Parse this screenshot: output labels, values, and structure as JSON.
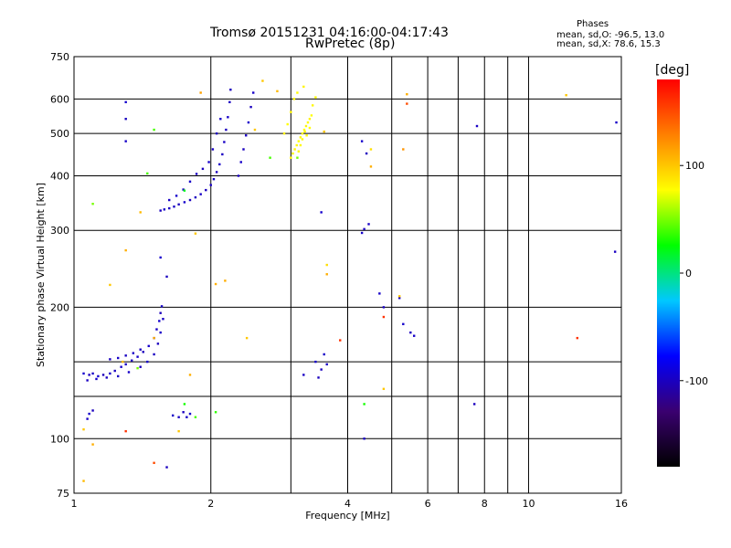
{
  "header": {
    "title_line1": "Tromsø 20151231 04:16:00-04:17:43",
    "title_line2": "RwPretec (8p)",
    "phases_label": "Phases",
    "stat_o": "mean, sd,O: -96.5, 13.0",
    "stat_x": "mean, sd,X:  78.6, 15.3"
  },
  "chart_data": {
    "type": "scatter",
    "title": "Tromsø 20151231 04:16:00-04:17:43",
    "subtitle": "RwPretec (8p)",
    "xlabel": "Frequency [MHz]",
    "ylabel": "Stationary phase Virtual Height [km]",
    "x_scale": "log",
    "y_scale": "log",
    "xlim": [
      1,
      16
    ],
    "ylim": [
      75,
      750
    ],
    "x_ticks": [
      1,
      2,
      4,
      6,
      8,
      10,
      16
    ],
    "y_ticks": [
      75,
      100,
      200,
      300,
      400,
      500,
      600,
      750
    ],
    "grid": true,
    "colorbar": {
      "label": "[deg]",
      "min": -180,
      "max": 180,
      "ticks": [
        -100,
        0,
        100
      ],
      "colors": [
        "#000000",
        "#3a0070",
        "#0000ff",
        "#00c8ff",
        "#00ff00",
        "#ffff00",
        "#ff8000",
        "#ff0000"
      ]
    },
    "series": [
      {
        "points": [
          [
            1.05,
            141,
            -95
          ],
          [
            1.08,
            140,
            -100
          ],
          [
            1.1,
            141,
            -98
          ],
          [
            1.13,
            139,
            -94
          ],
          [
            1.16,
            140,
            -102
          ],
          [
            1.2,
            141,
            -97
          ],
          [
            1.23,
            143,
            -100
          ],
          [
            1.27,
            146,
            -96
          ],
          [
            1.3,
            148,
            -99
          ],
          [
            1.34,
            151,
            -100
          ],
          [
            1.38,
            154,
            -97
          ],
          [
            1.42,
            158,
            -101
          ],
          [
            1.46,
            163,
            -96
          ],
          [
            1.5,
            170,
            -100
          ],
          [
            1.52,
            178,
            -98
          ],
          [
            1.54,
            186,
            -95
          ],
          [
            1.55,
            194,
            -102
          ],
          [
            1.56,
            201,
            -97
          ],
          [
            1.07,
            136,
            -99
          ],
          [
            1.12,
            137,
            -96
          ],
          [
            1.18,
            138,
            -100
          ],
          [
            1.25,
            139,
            -98
          ],
          [
            1.32,
            142,
            -97
          ],
          [
            1.4,
            146,
            -100
          ],
          [
            1.45,
            150,
            -96
          ],
          [
            1.5,
            156,
            -99
          ],
          [
            1.53,
            165,
            -100
          ],
          [
            1.55,
            175,
            -97
          ],
          [
            1.57,
            188,
            -98
          ],
          [
            1.2,
            152,
            -100
          ],
          [
            1.25,
            153,
            -97
          ],
          [
            1.3,
            155,
            -99
          ],
          [
            1.35,
            157,
            -98
          ],
          [
            1.4,
            160,
            -100
          ],
          [
            1.07,
            111,
            -98
          ],
          [
            1.08,
            114,
            -96
          ],
          [
            1.1,
            116,
            -100
          ],
          [
            1.65,
            113,
            -97
          ],
          [
            1.7,
            112,
            -99
          ],
          [
            1.74,
            115,
            -100
          ],
          [
            1.77,
            112,
            -98
          ],
          [
            1.8,
            114,
            -96
          ],
          [
            1.55,
            333,
            -100
          ],
          [
            1.58,
            335,
            -97
          ],
          [
            1.62,
            337,
            -99
          ],
          [
            1.66,
            340,
            -98
          ],
          [
            1.7,
            344,
            -101
          ],
          [
            1.75,
            348,
            -96
          ],
          [
            1.8,
            352,
            -100
          ],
          [
            1.85,
            357,
            -99
          ],
          [
            1.9,
            363,
            -97
          ],
          [
            1.95,
            371,
            -100
          ],
          [
            2.0,
            381,
            -98
          ],
          [
            2.03,
            393,
            -96
          ],
          [
            2.06,
            408,
            -100
          ],
          [
            2.09,
            425,
            -97
          ],
          [
            2.12,
            448,
            -99
          ],
          [
            2.14,
            478,
            -98
          ],
          [
            2.16,
            510,
            -100
          ],
          [
            2.18,
            545,
            -97
          ],
          [
            2.2,
            590,
            -99
          ],
          [
            2.21,
            630,
            -100
          ],
          [
            1.62,
            352,
            -98
          ],
          [
            1.68,
            360,
            -96
          ],
          [
            1.74,
            372,
            -100
          ],
          [
            1.8,
            388,
            -97
          ],
          [
            1.86,
            404,
            -99
          ],
          [
            1.92,
            415,
            -100
          ],
          [
            1.98,
            430,
            -97
          ],
          [
            2.02,
            460,
            -98
          ],
          [
            2.06,
            500,
            -100
          ],
          [
            2.1,
            540,
            -96
          ],
          [
            2.3,
            400,
            -99
          ],
          [
            2.33,
            430,
            -97
          ],
          [
            2.36,
            460,
            -100
          ],
          [
            2.39,
            495,
            -98
          ],
          [
            2.42,
            530,
            -96
          ],
          [
            2.45,
            575,
            -100
          ],
          [
            2.48,
            620,
            -97
          ],
          [
            1.3,
            590,
            -95
          ],
          [
            1.3,
            540,
            -100
          ],
          [
            1.3,
            480,
            -97
          ],
          [
            1.55,
            260,
            -95
          ],
          [
            1.6,
            235,
            -100
          ],
          [
            3.4,
            150,
            -95
          ],
          [
            3.5,
            144,
            -100
          ],
          [
            3.55,
            156,
            -97
          ],
          [
            3.6,
            148,
            -99
          ],
          [
            3.45,
            138,
            -100
          ],
          [
            3.2,
            140,
            -98
          ],
          [
            3.5,
            330,
            -95
          ],
          [
            4.3,
            296,
            -97
          ],
          [
            4.35,
            302,
            -100
          ],
          [
            4.45,
            310,
            -98
          ],
          [
            4.3,
            480,
            -95
          ],
          [
            4.4,
            450,
            -100
          ],
          [
            4.7,
            215,
            -97
          ],
          [
            4.8,
            200,
            -99
          ],
          [
            5.2,
            210,
            -98
          ],
          [
            5.5,
            175,
            -100
          ],
          [
            5.6,
            172,
            -97
          ],
          [
            5.3,
            183,
            -96
          ],
          [
            7.7,
            520,
            -98
          ],
          [
            7.6,
            120,
            -100
          ],
          [
            15.6,
            530,
            -97
          ],
          [
            15.5,
            268,
            -99
          ],
          [
            1.6,
            86,
            -100
          ],
          [
            4.35,
            100,
            -98
          ]
        ]
      },
      {
        "points": [
          [
            3.0,
            440,
            80
          ],
          [
            3.03,
            450,
            78
          ],
          [
            3.06,
            460,
            82
          ],
          [
            3.09,
            470,
            79
          ],
          [
            3.12,
            480,
            77
          ],
          [
            3.15,
            490,
            80
          ],
          [
            3.18,
            500,
            81
          ],
          [
            3.21,
            510,
            78
          ],
          [
            3.24,
            520,
            80
          ],
          [
            3.27,
            530,
            79
          ],
          [
            3.3,
            540,
            82
          ],
          [
            3.33,
            550,
            77
          ],
          [
            3.05,
            600,
            80
          ],
          [
            3.1,
            620,
            78
          ],
          [
            3.2,
            640,
            81
          ],
          [
            3.15,
            470,
            79
          ],
          [
            3.25,
            495,
            80
          ],
          [
            3.3,
            515,
            78
          ],
          [
            3.35,
            580,
            80
          ],
          [
            3.4,
            605,
            79
          ],
          [
            2.9,
            500,
            82
          ],
          [
            2.95,
            525,
            78
          ],
          [
            3.0,
            560,
            80
          ],
          [
            3.12,
            455,
            81
          ],
          [
            3.18,
            485,
            79
          ],
          [
            3.22,
            505,
            80
          ]
        ]
      },
      {
        "points": [
          [
            1.05,
            105,
            100
          ],
          [
            1.1,
            97,
            110
          ],
          [
            1.05,
            80,
            105
          ],
          [
            1.3,
            270,
            110
          ],
          [
            1.2,
            225,
            100
          ],
          [
            1.4,
            330,
            105
          ],
          [
            1.45,
            405,
            40
          ],
          [
            1.5,
            510,
            40
          ],
          [
            1.1,
            345,
            50
          ],
          [
            1.75,
            370,
            20
          ],
          [
            1.85,
            295,
            100
          ],
          [
            1.9,
            620,
            115
          ],
          [
            1.8,
            140,
            110
          ],
          [
            1.85,
            112,
            40
          ],
          [
            1.7,
            104,
            100
          ],
          [
            1.75,
            120,
            30
          ],
          [
            2.05,
            115,
            35
          ],
          [
            2.05,
            226,
            110
          ],
          [
            2.5,
            510,
            100
          ],
          [
            2.6,
            660,
            100
          ],
          [
            2.8,
            625,
            105
          ],
          [
            2.7,
            440,
            40
          ],
          [
            3.1,
            440,
            50
          ],
          [
            3.55,
            505,
            100
          ],
          [
            3.6,
            250,
            90
          ],
          [
            3.6,
            238,
            110
          ],
          [
            3.85,
            168,
            160
          ],
          [
            4.5,
            420,
            110
          ],
          [
            4.5,
            460,
            90
          ],
          [
            4.8,
            190,
            160
          ],
          [
            5.2,
            212,
            100
          ],
          [
            5.4,
            615,
            110
          ],
          [
            5.4,
            585,
            150
          ],
          [
            5.3,
            460,
            120
          ],
          [
            4.8,
            130,
            100
          ],
          [
            4.35,
            120,
            30
          ],
          [
            1.3,
            104,
            160
          ],
          [
            1.5,
            88,
            150
          ],
          [
            2.4,
            170,
            100
          ],
          [
            12.1,
            612,
            100
          ],
          [
            12.8,
            170,
            160
          ],
          [
            2.15,
            230,
            110
          ],
          [
            1.38,
            145,
            50
          ],
          [
            1.5,
            170,
            110
          ],
          [
            1.28,
            150,
            105
          ]
        ]
      }
    ]
  }
}
